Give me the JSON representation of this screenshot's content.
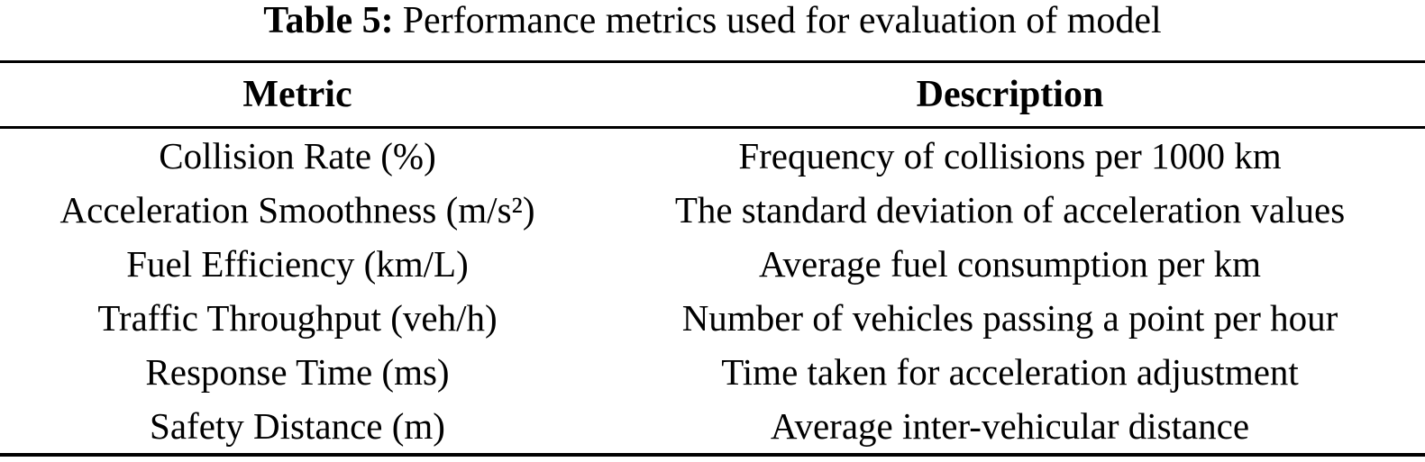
{
  "caption": {
    "label": "Table 5:",
    "text": "Performance metrics used for evaluation of model"
  },
  "table": {
    "headers": {
      "metric": "Metric",
      "description": "Description"
    },
    "rows": [
      {
        "metric": "Collision Rate (%)",
        "description": "Frequency of collisions per 1000 km"
      },
      {
        "metric": "Acceleration Smoothness (m/s²)",
        "description": "The standard deviation of acceleration values"
      },
      {
        "metric": "Fuel Efficiency (km/L)",
        "description": "Average fuel consumption per km"
      },
      {
        "metric": "Traffic Throughput (veh/h)",
        "description": "Number of vehicles passing a point per hour"
      },
      {
        "metric": "Response Time (ms)",
        "description": "Time taken for acceleration adjustment"
      },
      {
        "metric": "Safety Distance (m)",
        "description": "Average inter-vehicular distance"
      }
    ],
    "colors": {
      "text": "#000000",
      "rules": "#000000",
      "background": "#ffffff"
    }
  }
}
